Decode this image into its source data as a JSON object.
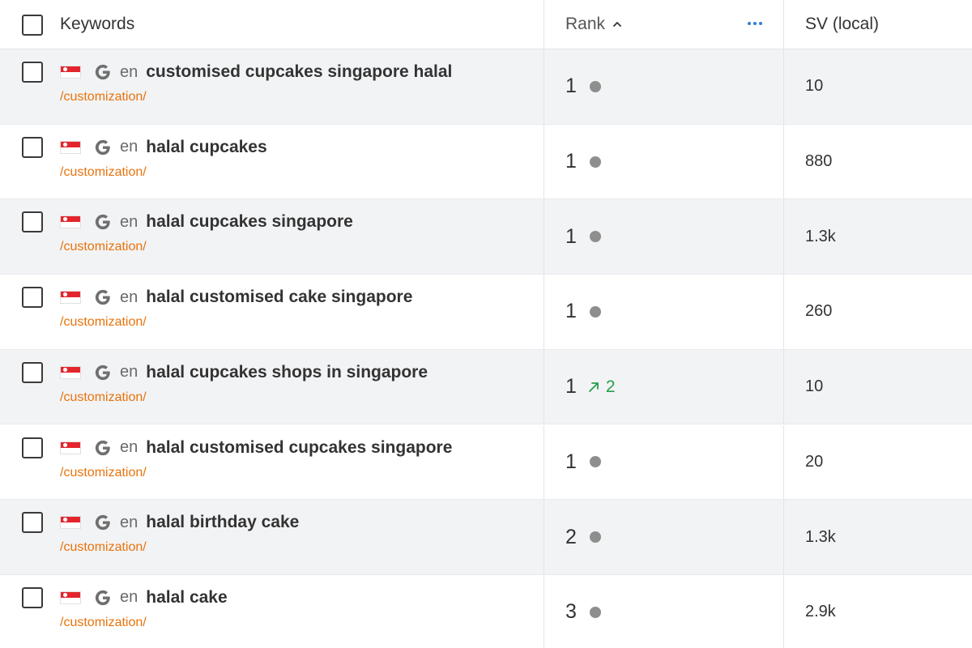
{
  "header": {
    "keywords_label": "Keywords",
    "rank_label": "Rank",
    "sv_label": "SV (local)"
  },
  "rows": [
    {
      "lang": "en",
      "keyword": "customised cupcakes singapore halal",
      "url": "/customization/",
      "rank": "1",
      "change": "",
      "sv": "10"
    },
    {
      "lang": "en",
      "keyword": "halal cupcakes",
      "url": "/customization/",
      "rank": "1",
      "change": "",
      "sv": "880"
    },
    {
      "lang": "en",
      "keyword": "halal cupcakes singapore",
      "url": "/customization/",
      "rank": "1",
      "change": "",
      "sv": "1.3k"
    },
    {
      "lang": "en",
      "keyword": "halal customised cake singapore",
      "url": "/customization/",
      "rank": "1",
      "change": "",
      "sv": "260"
    },
    {
      "lang": "en",
      "keyword": "halal cupcakes shops in singapore",
      "url": "/customization/",
      "rank": "1",
      "change": "2",
      "sv": "10"
    },
    {
      "lang": "en",
      "keyword": "halal customised cupcakes singapore",
      "url": "/customization/",
      "rank": "1",
      "change": "",
      "sv": "20"
    },
    {
      "lang": "en",
      "keyword": "halal birthday cake",
      "url": "/customization/",
      "rank": "2",
      "change": "",
      "sv": "1.3k"
    },
    {
      "lang": "en",
      "keyword": "halal cake",
      "url": "/customization/",
      "rank": "3",
      "change": "",
      "sv": "2.9k"
    }
  ],
  "colors": {
    "url": "#e8730c",
    "change_up": "#26a04a",
    "more_icon": "#2f7fd8",
    "row_shaded": "#f2f3f5"
  },
  "icons": {
    "flag": "singapore-flag-icon",
    "engine": "google-g-icon",
    "rank_sort": "chevron-up-icon",
    "more": "more-horizontal-icon",
    "trend": "arrow-up-right-icon",
    "no_change": "gray-dot-icon"
  }
}
